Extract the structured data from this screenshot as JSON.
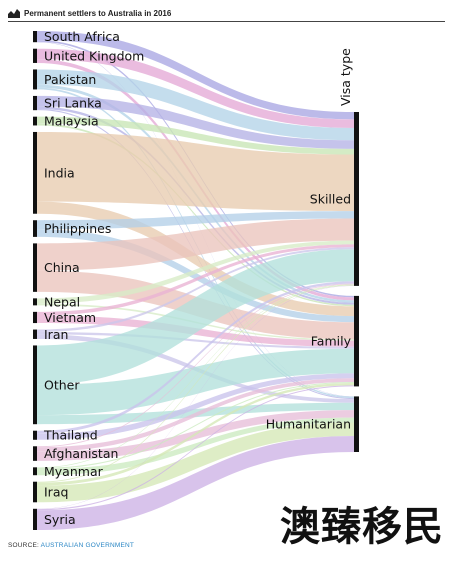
{
  "header": {
    "title": "Permanent settlers to Australia in 2016",
    "icon": "chart-icon"
  },
  "chart_data": {
    "type": "sankey",
    "title": "Permanent settlers to Australia in 2016",
    "axis_label": "Visa type",
    "sources": [
      {
        "name": "South Africa",
        "color": "#a9a6e3"
      },
      {
        "name": "United Kingdom",
        "color": "#e4a9d6"
      },
      {
        "name": "Pakistan",
        "color": "#b3d4e8"
      },
      {
        "name": "Sri Lanka",
        "color": "#b5b2e6"
      },
      {
        "name": "Malaysia",
        "color": "#c8e6b5"
      },
      {
        "name": "India",
        "color": "#e8ccb0"
      },
      {
        "name": "Philippines",
        "color": "#b4cfe8"
      },
      {
        "name": "China",
        "color": "#ebc4bc"
      },
      {
        "name": "Nepal",
        "color": "#d7ecc6"
      },
      {
        "name": "Vietnam",
        "color": "#e9b2d3"
      },
      {
        "name": "Iran",
        "color": "#ccc6ea"
      },
      {
        "name": "Other",
        "color": "#b2e0db"
      },
      {
        "name": "Thailand",
        "color": "#c9c3ec"
      },
      {
        "name": "Afghanistan",
        "color": "#e7bed8"
      },
      {
        "name": "Myanmar",
        "color": "#ccebc0"
      },
      {
        "name": "Iraq",
        "color": "#d5e8b6"
      },
      {
        "name": "Syria",
        "color": "#cdb2e6"
      }
    ],
    "targets": [
      "Skilled",
      "Family",
      "Humanitarian"
    ],
    "flows": [
      {
        "from": "South Africa",
        "to": "Skilled",
        "value": 3
      },
      {
        "from": "South Africa",
        "to": "Family",
        "value": 0.6
      },
      {
        "from": "South Africa",
        "to": "Humanitarian",
        "value": 0.1
      },
      {
        "from": "United Kingdom",
        "to": "Skilled",
        "value": 3.5
      },
      {
        "from": "United Kingdom",
        "to": "Family",
        "value": 1.2
      },
      {
        "from": "Pakistan",
        "to": "Skilled",
        "value": 5
      },
      {
        "from": "Pakistan",
        "to": "Family",
        "value": 1
      },
      {
        "from": "Pakistan",
        "to": "Humanitarian",
        "value": 0.6
      },
      {
        "from": "Sri Lanka",
        "to": "Skilled",
        "value": 3.5
      },
      {
        "from": "Sri Lanka",
        "to": "Family",
        "value": 0.8
      },
      {
        "from": "Sri Lanka",
        "to": "Humanitarian",
        "value": 0.4
      },
      {
        "from": "Malaysia",
        "to": "Skilled",
        "value": 2.3
      },
      {
        "from": "Malaysia",
        "to": "Family",
        "value": 0.6
      },
      {
        "from": "India",
        "to": "Skilled",
        "value": 23
      },
      {
        "from": "India",
        "to": "Family",
        "value": 4
      },
      {
        "from": "Philippines",
        "to": "Skilled",
        "value": 3
      },
      {
        "from": "Philippines",
        "to": "Family",
        "value": 2.5
      },
      {
        "from": "China",
        "to": "Skilled",
        "value": 9
      },
      {
        "from": "China",
        "to": "Family",
        "value": 7
      },
      {
        "from": "Nepal",
        "to": "Skilled",
        "value": 1.5
      },
      {
        "from": "Nepal",
        "to": "Family",
        "value": 0.5
      },
      {
        "from": "Vietnam",
        "to": "Skilled",
        "value": 1.2
      },
      {
        "from": "Vietnam",
        "to": "Family",
        "value": 2.5
      },
      {
        "from": "Iran",
        "to": "Skilled",
        "value": 0.8
      },
      {
        "from": "Iran",
        "to": "Family",
        "value": 0.8
      },
      {
        "from": "Iran",
        "to": "Humanitarian",
        "value": 1.5
      },
      {
        "from": "Other",
        "to": "Skilled",
        "value": 13
      },
      {
        "from": "Other",
        "to": "Family",
        "value": 10
      },
      {
        "from": "Other",
        "to": "Humanitarian",
        "value": 3
      },
      {
        "from": "Thailand",
        "to": "Skilled",
        "value": 1
      },
      {
        "from": "Thailand",
        "to": "Family",
        "value": 2
      },
      {
        "from": "Afghanistan",
        "to": "Skilled",
        "value": 0.3
      },
      {
        "from": "Afghanistan",
        "to": "Family",
        "value": 1.5
      },
      {
        "from": "Afghanistan",
        "to": "Humanitarian",
        "value": 3
      },
      {
        "from": "Myanmar",
        "to": "Skilled",
        "value": 0.2
      },
      {
        "from": "Myanmar",
        "to": "Family",
        "value": 0.4
      },
      {
        "from": "Myanmar",
        "to": "Humanitarian",
        "value": 2
      },
      {
        "from": "Iraq",
        "to": "Skilled",
        "value": 0.3
      },
      {
        "from": "Iraq",
        "to": "Family",
        "value": 1
      },
      {
        "from": "Iraq",
        "to": "Humanitarian",
        "value": 5.5
      },
      {
        "from": "Syria",
        "to": "Skilled",
        "value": 0.1
      },
      {
        "from": "Syria",
        "to": "Family",
        "value": 0.4
      },
      {
        "from": "Syria",
        "to": "Humanitarian",
        "value": 6.5
      }
    ]
  },
  "source": {
    "label": "SOURCE:",
    "value": "AUSTRALIAN GOVERNMENT"
  },
  "watermark": {
    "text": "澳臻移民"
  }
}
